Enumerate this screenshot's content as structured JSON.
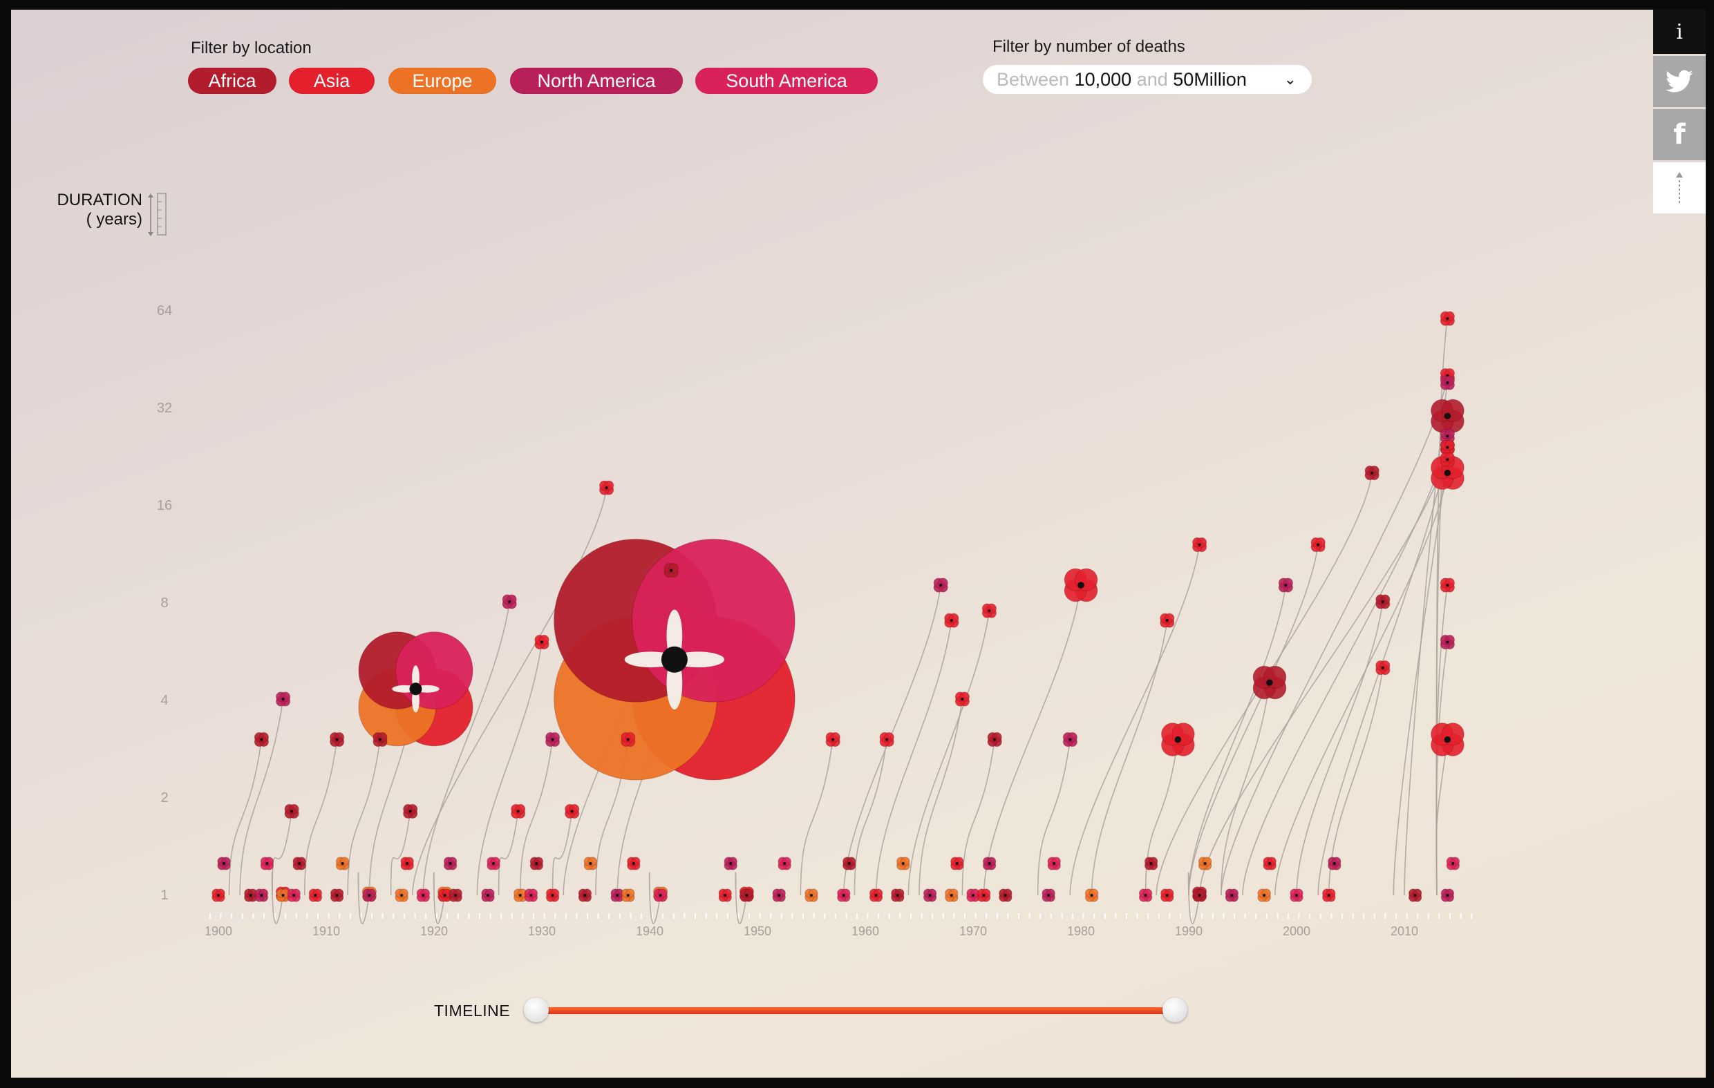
{
  "filters": {
    "location_label": "Filter by location",
    "locations": [
      {
        "label": "Africa",
        "color": "#b31c2c"
      },
      {
        "label": "Asia",
        "color": "#e3202c"
      },
      {
        "label": "Europe",
        "color": "#ec7326"
      },
      {
        "label": "North America",
        "color": "#b8205a"
      },
      {
        "label": "South America",
        "color": "#d9225a"
      }
    ],
    "deaths_label": "Filter by number of deaths",
    "deaths_between": "Between",
    "deaths_min": "10,000",
    "deaths_and": "and",
    "deaths_max": "50Million"
  },
  "sidebar": {
    "info_glyph": "i",
    "icons": [
      "info-icon",
      "twitter-icon",
      "facebook-icon",
      "scroll-icon"
    ],
    "facebook_glyph": "f"
  },
  "axis": {
    "ylabel_line1": "DURATION",
    "ylabel_line2": "( years)"
  },
  "timeline": {
    "label": "TIMELINE",
    "range_start": 0.0,
    "range_end": 1.0
  },
  "chart_data": {
    "type": "scatter",
    "y_scale": "log2",
    "y_ticks": [
      "64",
      "32",
      "16",
      "8",
      "4",
      "2",
      "1"
    ],
    "x_ticks": [
      "1900",
      "1910",
      "1920",
      "1930",
      "1940",
      "1950",
      "1960",
      "1970",
      "1980",
      "1990",
      "2000",
      "2010"
    ],
    "xlim": [
      1899,
      2015
    ],
    "ylim_years": [
      0.5,
      64
    ],
    "colors": {
      "Africa": "#b31c2c",
      "Asia": "#e3202c",
      "Europe": "#ec7326",
      "North America": "#b8205a",
      "South America": "#d9225a"
    },
    "conflicts": [
      {
        "start": 1914,
        "duration": 4.3,
        "region": "Europe",
        "size": "large"
      },
      {
        "start": 1937,
        "duration": 5.3,
        "region": "Europe",
        "size": "very-large"
      },
      {
        "start": 1971,
        "duration": 9,
        "region": "Asia",
        "size": "medium"
      },
      {
        "start": 1918,
        "duration": 18,
        "region": "Asia",
        "size": "small"
      },
      {
        "start": 1919,
        "duration": 8,
        "region": "North America",
        "size": "small"
      },
      {
        "start": 1902,
        "duration": 4,
        "region": "North America",
        "size": "small"
      },
      {
        "start": 1901,
        "duration": 3,
        "region": "Africa",
        "size": "small"
      },
      {
        "start": 1905,
        "duration": 1.8,
        "region": "Africa",
        "size": "small"
      },
      {
        "start": 1908,
        "duration": 3,
        "region": "Africa",
        "size": "small"
      },
      {
        "start": 1912,
        "duration": 3,
        "region": "Africa",
        "size": "small"
      },
      {
        "start": 1916,
        "duration": 1.8,
        "region": "Africa",
        "size": "small"
      },
      {
        "start": 1924,
        "duration": 6,
        "region": "Asia",
        "size": "small"
      },
      {
        "start": 1926,
        "duration": 1.8,
        "region": "Asia",
        "size": "small"
      },
      {
        "start": 1928,
        "duration": 3,
        "region": "North America",
        "size": "small"
      },
      {
        "start": 1931,
        "duration": 1.8,
        "region": "Asia",
        "size": "small"
      },
      {
        "start": 1932,
        "duration": 10,
        "region": "Africa",
        "size": "small"
      },
      {
        "start": 1958,
        "duration": 9,
        "region": "North America",
        "size": "small"
      },
      {
        "start": 1961,
        "duration": 7,
        "region": "Asia",
        "size": "small"
      },
      {
        "start": 1964,
        "duration": 7.5,
        "region": "Asia",
        "size": "small"
      },
      {
        "start": 1965,
        "duration": 4,
        "region": "Asia",
        "size": "small"
      },
      {
        "start": 1979,
        "duration": 12,
        "region": "Asia",
        "size": "small"
      },
      {
        "start": 1981,
        "duration": 7,
        "region": "Asia",
        "size": "small"
      },
      {
        "start": 1987,
        "duration": 20,
        "region": "Africa",
        "size": "small"
      },
      {
        "start": 1991,
        "duration": 24,
        "region": "Africa",
        "size": "small"
      },
      {
        "start": 1993,
        "duration": 40,
        "region": "Asia",
        "size": "small"
      },
      {
        "start": 1995,
        "duration": 26,
        "region": "North America",
        "size": "small"
      },
      {
        "start": 1998,
        "duration": 20,
        "region": "Asia",
        "size": "medium"
      },
      {
        "start": 2002,
        "duration": 24,
        "region": "Asia",
        "size": "small"
      },
      {
        "start": 2009,
        "duration": 22,
        "region": "Asia",
        "size": "small"
      },
      {
        "start": 2010,
        "duration": 38,
        "region": "North America",
        "size": "small"
      },
      {
        "start": 2013,
        "duration": 60,
        "region": "Asia",
        "size": "small"
      },
      {
        "start": 2013,
        "duration": 30,
        "region": "Africa",
        "size": "medium"
      },
      {
        "start": 1993,
        "duration": 4.5,
        "region": "Africa",
        "size": "medium"
      },
      {
        "start": 1986,
        "duration": 3,
        "region": "Asia",
        "size": "medium"
      },
      {
        "start": 2013,
        "duration": 3,
        "region": "Asia",
        "size": "medium"
      },
      {
        "start": 2013,
        "duration": 6,
        "region": "North America",
        "size": "small"
      },
      {
        "start": 2013,
        "duration": 9,
        "region": "Asia",
        "size": "small"
      },
      {
        "start": 1990,
        "duration": 12,
        "region": "Asia",
        "size": "small"
      },
      {
        "start": 1990,
        "duration": 9,
        "region": "North America",
        "size": "small"
      },
      {
        "start": 2000,
        "duration": 8,
        "region": "Africa",
        "size": "small"
      },
      {
        "start": 2003,
        "duration": 5,
        "region": "Asia",
        "size": "small"
      },
      {
        "start": 1976,
        "duration": 3,
        "region": "North America",
        "size": "small"
      },
      {
        "start": 1969,
        "duration": 3,
        "region": "Africa",
        "size": "small"
      },
      {
        "start": 1959,
        "duration": 3,
        "region": "Asia",
        "size": "small"
      },
      {
        "start": 1935,
        "duration": 3,
        "region": "Asia",
        "size": "small"
      },
      {
        "start": 1954,
        "duration": 3,
        "region": "Asia",
        "size": "small"
      },
      {
        "start": 1990,
        "duration": 1,
        "region": "Africa",
        "size": "small"
      },
      {
        "start": 1920,
        "duration": 1,
        "region": "Europe",
        "size": "small"
      },
      {
        "start": 1940,
        "duration": 1,
        "region": "Europe",
        "size": "small"
      },
      {
        "start": 1948,
        "duration": 1,
        "region": "Asia",
        "size": "small"
      },
      {
        "start": 1905,
        "duration": 1,
        "region": "Asia",
        "size": "small"
      },
      {
        "start": 1913,
        "duration": 1,
        "region": "Europe",
        "size": "small"
      }
    ]
  }
}
